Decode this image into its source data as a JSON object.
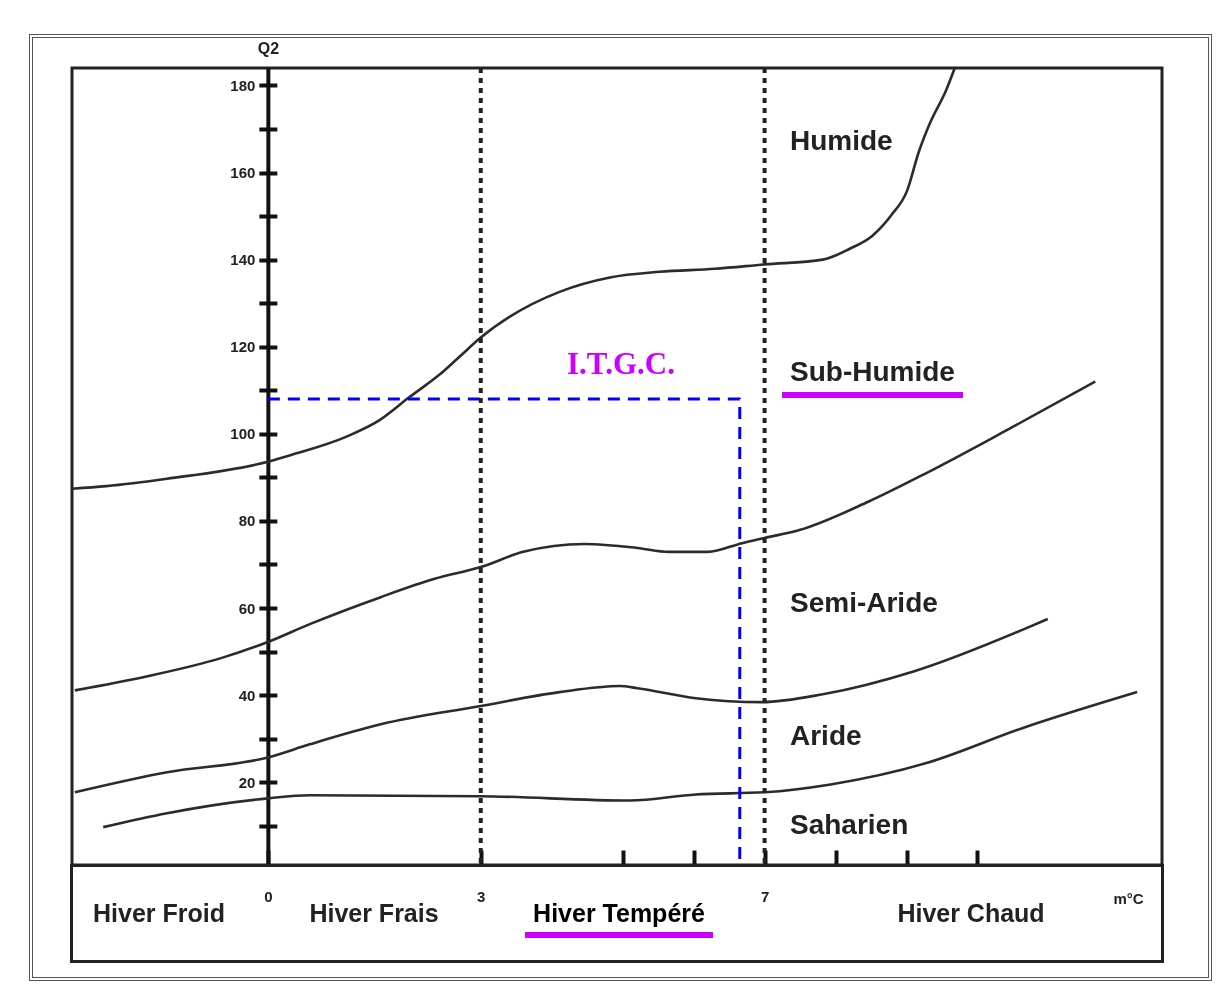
{
  "chart_data": {
    "type": "line",
    "xlabel": "m°C",
    "ylabel": "Q2",
    "xlim": [
      -2.76,
      12.6
    ],
    "ylim": [
      1,
      184
    ],
    "xticks": [
      0,
      3,
      {
        "value": 5,
        "label": null
      },
      {
        "value": 6,
        "label": null
      },
      7,
      {
        "value": 8,
        "label": null
      },
      {
        "value": 9,
        "label": null
      },
      {
        "value": 10,
        "label": null
      }
    ],
    "yticks": [
      {
        "value": 10,
        "label": null
      },
      20,
      {
        "value": 30,
        "label": null
      },
      40,
      {
        "value": 50,
        "label": null
      },
      60,
      {
        "value": 70,
        "label": null
      },
      80,
      {
        "value": 90,
        "label": null
      },
      100,
      {
        "value": 110,
        "label": null
      },
      120,
      {
        "value": 130,
        "label": null
      },
      140,
      {
        "value": 150,
        "label": null
      },
      160,
      {
        "value": 170,
        "label": null
      },
      180
    ],
    "grid": false,
    "series": [
      {
        "color": "#2b2b2b",
        "x": [
          -2.76,
          -2.28,
          -1.42,
          0,
          0.34,
          1.1,
          1.58,
          2.0,
          2.42,
          2.7,
          3.0,
          3.41,
          4.11,
          4.82,
          5.52,
          6.3,
          7.0,
          7.82,
          8.2,
          8.52,
          8.79,
          9.01,
          9.17,
          9.34,
          9.55,
          9.68
        ],
        "values": [
          87.4,
          88.0,
          89.7,
          93.6,
          95.2,
          99.3,
          103.2,
          108.5,
          113.6,
          117.7,
          122.1,
          126.9,
          132.6,
          135.9,
          137.2,
          137.9,
          138.9,
          140,
          142.5,
          145.5,
          150.3,
          155.9,
          164.6,
          171.7,
          178.6,
          184
        ]
      },
      {
        "color": "#2b2b2b",
        "x": [
          -2.72,
          -1.68,
          -0.66,
          0,
          0.59,
          1.59,
          2.35,
          3.0,
          3.6,
          4.46,
          5.21,
          5.65,
          6.2,
          6.68,
          7.0,
          7.49,
          8.46,
          9.28,
          10.42,
          11.66
        ],
        "values": [
          41.1,
          44.4,
          48.5,
          52.2,
          56.3,
          62.5,
          66.7,
          69.4,
          72.9,
          74.7,
          73.8,
          72.9,
          72.9,
          74.9,
          76.1,
          77.9,
          84.4,
          91.0,
          100.9,
          112
        ]
      },
      {
        "color": "#2b2b2b",
        "x": [
          -2.72,
          -1.42,
          0,
          0.59,
          1.59,
          3.0,
          4.11,
          4.96,
          5.21,
          6.03,
          6.96,
          7.82,
          9.11,
          10.69,
          10.99
        ],
        "values": [
          17.7,
          22.3,
          25.7,
          28.7,
          33.3,
          37.5,
          40.7,
          42.1,
          41.6,
          39.3,
          38.4,
          40.2,
          45.5,
          55.4,
          57.5
        ]
      },
      {
        "color": "#2b2b2b",
        "x": [
          -2.32,
          -1.42,
          0,
          0.59,
          3.0,
          5.1,
          6.03,
          7.0,
          7.93,
          9.28,
          10.63,
          12.25
        ],
        "values": [
          9.7,
          12.9,
          16.3,
          17.0,
          16.8,
          15.8,
          17.2,
          17.7,
          19.5,
          24.4,
          32.4,
          40.7
        ]
      },
      {
        "color": "#0000ff",
        "line_style": "dashed",
        "x": [
          0,
          6.65,
          6.65
        ],
        "values": [
          108,
          108,
          1
        ]
      }
    ],
    "ref_lines": [
      {
        "axis": "x",
        "value": 3,
        "color": "#222222",
        "line_style": "dotted"
      },
      {
        "axis": "x",
        "value": 7,
        "color": "#222222",
        "line_style": "dotted"
      }
    ],
    "annotations": [
      "I.T.G.C.",
      "Humide",
      "Sub-Humide",
      "Semi-Aride",
      "Aride",
      "Saharien",
      "Hiver Froid",
      "Hiver Frais",
      "Hiver Tempéré",
      "Hiver Chaud"
    ]
  }
}
